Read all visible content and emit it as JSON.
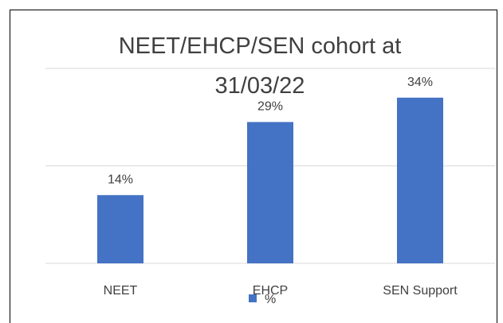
{
  "chart_data": {
    "type": "bar",
    "title": "NEET/EHCP/SEN cohort at 31/03/22",
    "categories": [
      "NEET",
      "EHCP",
      "SEN Support"
    ],
    "series": [
      {
        "name": "%",
        "color": "#4472c4",
        "values": [
          14,
          29,
          34
        ],
        "value_labels": [
          "14%",
          "29%",
          "34%"
        ]
      }
    ],
    "ylim": [
      0,
      40
    ],
    "yticks": [
      0,
      20,
      40
    ],
    "grid": true,
    "legend": "bottom"
  }
}
